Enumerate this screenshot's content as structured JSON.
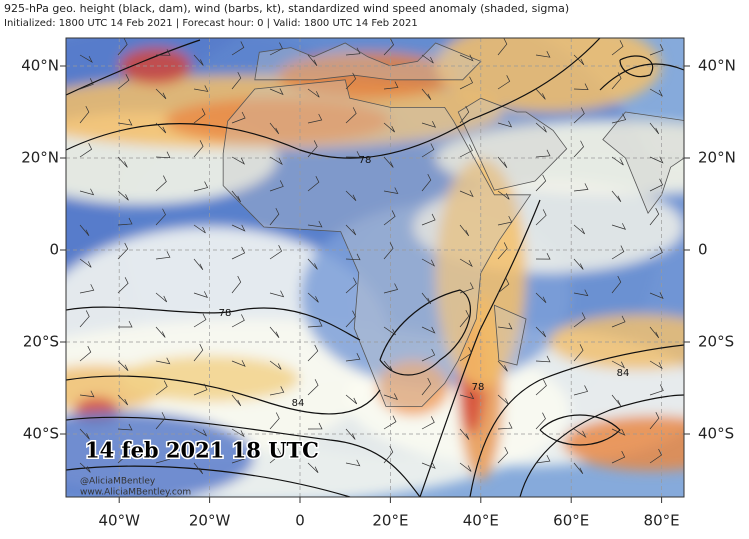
{
  "header": {
    "title": "925-hPa geo. height (black, dam), wind (barbs, kt), standardized wind speed anomaly (shaded, sigma)",
    "subtitle": "Initialized: 1800 UTC 14 Feb 2021 | Forecast hour: 0 | Valid: 1800 UTC 14 Feb 2021"
  },
  "map": {
    "lat_labels": [
      "40°N",
      "20°N",
      "0",
      "20°S",
      "40°S"
    ],
    "lon_labels": [
      "40°W",
      "20°W",
      "0",
      "20°E",
      "40°E",
      "60°E",
      "80°E"
    ],
    "contour_labels": [
      "78",
      "78",
      "84",
      "78",
      "84"
    ],
    "timestamp": "14 feb 2021 18 UTC",
    "credits": [
      "@AliciaMBentley",
      "www.AliciaMBentley.com"
    ]
  }
}
